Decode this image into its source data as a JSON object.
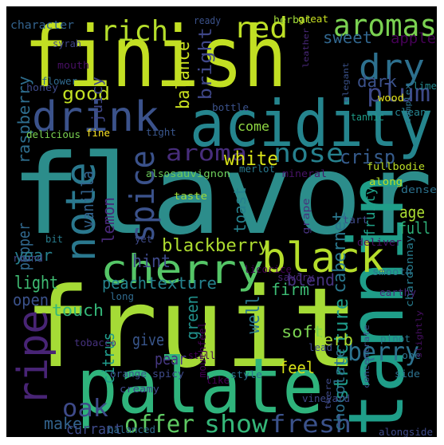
{
  "wordcloud": {
    "background": "#000000",
    "palette": "viridis",
    "words": [
      {
        "text": "flavor",
        "color": "#2c8d8b"
      },
      {
        "text": "fruit",
        "color": "#a5db36"
      },
      {
        "text": "finish",
        "color": "#c2df23"
      },
      {
        "text": "palate",
        "color": "#2fb47c"
      },
      {
        "text": "acidity",
        "color": "#25858e"
      },
      {
        "text": "tannin",
        "color": "#1f9e89"
      },
      {
        "text": "drink",
        "color": "#3b528b"
      },
      {
        "text": "cherry",
        "color": "#55c667"
      },
      {
        "text": "black",
        "color": "#b5de2b"
      },
      {
        "text": "note",
        "color": "#2a788e"
      },
      {
        "text": "ripe",
        "color": "#482475"
      },
      {
        "text": "aromas",
        "color": "#7ad151"
      },
      {
        "text": "dry",
        "color": "#2d708e"
      },
      {
        "text": "rich",
        "color": "#b5de2b"
      },
      {
        "text": "red",
        "color": "#bddf26"
      },
      {
        "text": "spice",
        "color": "#3b528b"
      },
      {
        "text": "plum",
        "color": "#3e4a89"
      },
      {
        "text": "nose",
        "color": "#26818e"
      },
      {
        "text": "aroma",
        "color": "#472d7b"
      },
      {
        "text": "berry",
        "color": "#2c728e"
      },
      {
        "text": "fresh",
        "color": "#3b528b"
      },
      {
        "text": "offer",
        "color": "#5ec962"
      },
      {
        "text": "show",
        "color": "#35b779"
      },
      {
        "text": "oak",
        "color": "#3e4a89"
      },
      {
        "text": "structure",
        "color": "#1e9b8a"
      },
      {
        "text": "blackberry",
        "color": "#addc30"
      },
      {
        "text": "cabernet",
        "color": "#2a778e"
      },
      {
        "text": "crisp",
        "color": "#365c8d"
      },
      {
        "text": "white",
        "color": "#d8e219"
      },
      {
        "text": "bright",
        "color": "#3f4788"
      },
      {
        "text": "balance",
        "color": "#c8e020"
      },
      {
        "text": "good",
        "color": "#c2df23"
      },
      {
        "text": "juicy",
        "color": "#404688"
      },
      {
        "text": "dark",
        "color": "#3b528b"
      },
      {
        "text": "sweet",
        "color": "#31668e"
      },
      {
        "text": "apple",
        "color": "#440154"
      },
      {
        "text": "raspberry",
        "color": "#2e6e8e"
      },
      {
        "text": "vanilla",
        "color": "#33638d"
      },
      {
        "text": "lemon",
        "color": "#482878"
      },
      {
        "text": "toast",
        "color": "#26828e"
      },
      {
        "text": "fruity",
        "color": "#1fa188"
      },
      {
        "text": "age",
        "color": "#aadc32"
      },
      {
        "text": "full",
        "color": "#2fb47c"
      },
      {
        "text": "hint",
        "color": "#3e4989"
      },
      {
        "text": "pepper",
        "color": "#31688e"
      },
      {
        "text": "year",
        "color": "#27808e"
      },
      {
        "text": "light",
        "color": "#3fbc73"
      },
      {
        "text": "peach",
        "color": "#25848e"
      },
      {
        "text": "texture",
        "color": "#26828e"
      },
      {
        "text": "blend",
        "color": "#46337e"
      },
      {
        "text": "firm",
        "color": "#3dbc74"
      },
      {
        "text": "open",
        "color": "#3b528b"
      },
      {
        "text": "touch",
        "color": "#35b779"
      },
      {
        "text": "soft",
        "color": "#7ad151"
      },
      {
        "text": "herb",
        "color": "#addc30"
      },
      {
        "text": "well",
        "color": "#2a788e"
      },
      {
        "text": "green",
        "color": "#21918c"
      },
      {
        "text": "give",
        "color": "#39568c"
      },
      {
        "text": "citrus",
        "color": "#1f9a8a"
      },
      {
        "text": "pear",
        "color": "#453781"
      },
      {
        "text": "feel",
        "color": "#d8e219"
      },
      {
        "text": "chocolate",
        "color": "#2c728e"
      },
      {
        "text": "make",
        "color": "#33638d"
      },
      {
        "text": "currant",
        "color": "#3e4a89"
      },
      {
        "text": "character",
        "color": "#33638d"
      },
      {
        "text": "come",
        "color": "#90d743"
      },
      {
        "text": "delicious",
        "color": "#7ad151"
      },
      {
        "text": "fine",
        "color": "#fde725"
      },
      {
        "text": "tight",
        "color": "#39568c"
      },
      {
        "text": "also",
        "color": "#6ccd5a"
      },
      {
        "text": "sauvignon",
        "color": "#6ccd5a"
      },
      {
        "text": "merlot",
        "color": "#29798e"
      },
      {
        "text": "mineral",
        "color": "#481467"
      },
      {
        "text": "fullbodie",
        "color": "#bddf26"
      },
      {
        "text": "wood",
        "color": "#e5e419"
      },
      {
        "text": "clean",
        "color": "#26828e"
      },
      {
        "text": "tannic",
        "color": "#1f9e89"
      },
      {
        "text": "lime",
        "color": "#23898e"
      },
      {
        "text": "complex",
        "color": "#2c728e"
      },
      {
        "text": "leather",
        "color": "#482878"
      },
      {
        "text": "herbal",
        "color": "#a0da39"
      },
      {
        "text": "great",
        "color": "#c8e020"
      },
      {
        "text": "ready",
        "color": "#3b528b"
      },
      {
        "text": "syrah",
        "color": "#404688"
      },
      {
        "text": "mouth",
        "color": "#471063"
      },
      {
        "text": "flower",
        "color": "#306a8e"
      },
      {
        "text": "honey",
        "color": "#3e4a89"
      },
      {
        "text": "elegant",
        "color": "#3b528b"
      },
      {
        "text": "bottle",
        "color": "#3b528b"
      },
      {
        "text": "along",
        "color": "#bddf26"
      },
      {
        "text": "taste",
        "color": "#a0da39"
      },
      {
        "text": "dense",
        "color": "#2c728e"
      },
      {
        "text": "grape",
        "color": "#46327e"
      },
      {
        "text": "tart",
        "color": "#3e4a89"
      },
      {
        "text": "bit",
        "color": "#287d8e"
      },
      {
        "text": "yet",
        "color": "#3e4a89"
      },
      {
        "text": "deliver",
        "color": "#471063"
      },
      {
        "text": "round",
        "color": "#404688"
      },
      {
        "text": "long",
        "color": "#306a8e"
      },
      {
        "text": "licorice",
        "color": "#440154"
      },
      {
        "text": "savory",
        "color": "#482475"
      },
      {
        "text": "smooth",
        "color": "#2c728e"
      },
      {
        "text": "chardonnay",
        "color": "#287c8e"
      },
      {
        "text": "earthy",
        "color": "#482878"
      },
      {
        "text": "mouthfeel",
        "color": "#440154"
      },
      {
        "text": "tobacco",
        "color": "#46327e"
      },
      {
        "text": "still",
        "color": "#440154"
      },
      {
        "text": "lead",
        "color": "#3e4a89"
      },
      {
        "text": "pinot",
        "color": "#29798e"
      },
      {
        "text": "one",
        "color": "#2c728e"
      },
      {
        "text": "orange",
        "color": "#3b528b"
      },
      {
        "text": "spicy",
        "color": "#3e4a89"
      },
      {
        "text": "like",
        "color": "#440154"
      },
      {
        "text": "style",
        "color": "#2c728e"
      },
      {
        "text": "creamy",
        "color": "#3e4a89"
      },
      {
        "text": "balanced",
        "color": "#306a8e"
      },
      {
        "text": "there",
        "color": "#3e4a89"
      },
      {
        "text": "vineyard",
        "color": "#3e4a89"
      },
      {
        "text": "concentrate",
        "color": "#3b528b"
      },
      {
        "text": "side",
        "color": "#2c728e"
      },
      {
        "text": "slightly",
        "color": "#471063"
      },
      {
        "text": "alongside",
        "color": "#3e4a89"
      }
    ]
  }
}
